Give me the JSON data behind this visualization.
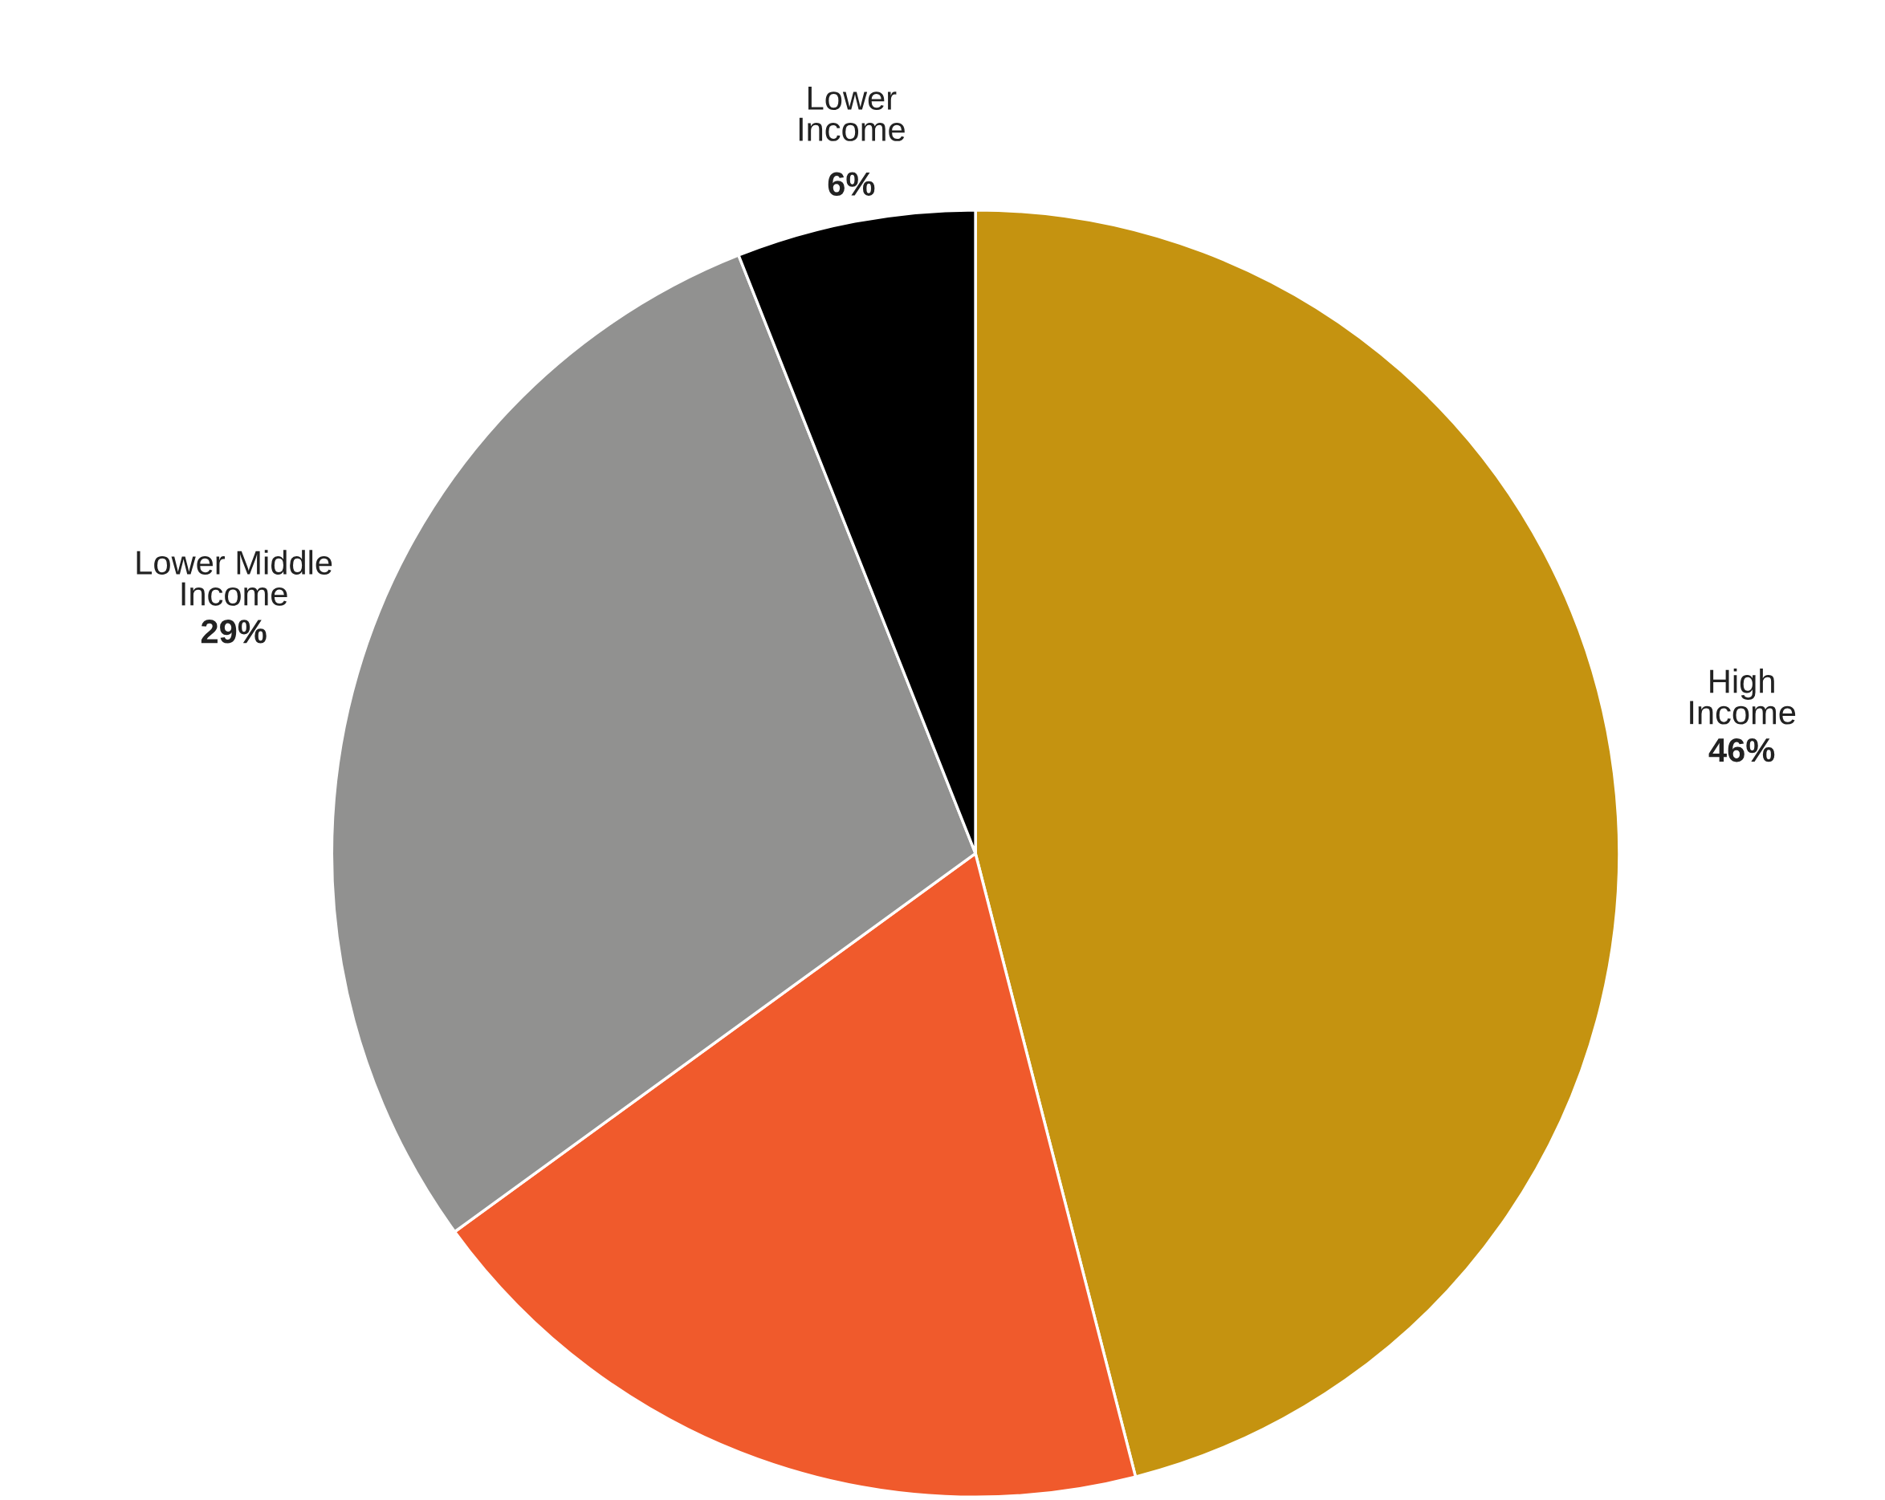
{
  "chart_data": {
    "type": "pie",
    "categories": [
      "High\nIncome",
      null,
      "Lower Middle\nIncome",
      "Lower\nIncome"
    ],
    "values": [
      46,
      19,
      29,
      6
    ],
    "colors": [
      "#c59310",
      "#f05a2c",
      "#919190",
      "#000000"
    ],
    "value_labels": [
      "46%",
      null,
      "29%",
      "6%"
    ]
  }
}
